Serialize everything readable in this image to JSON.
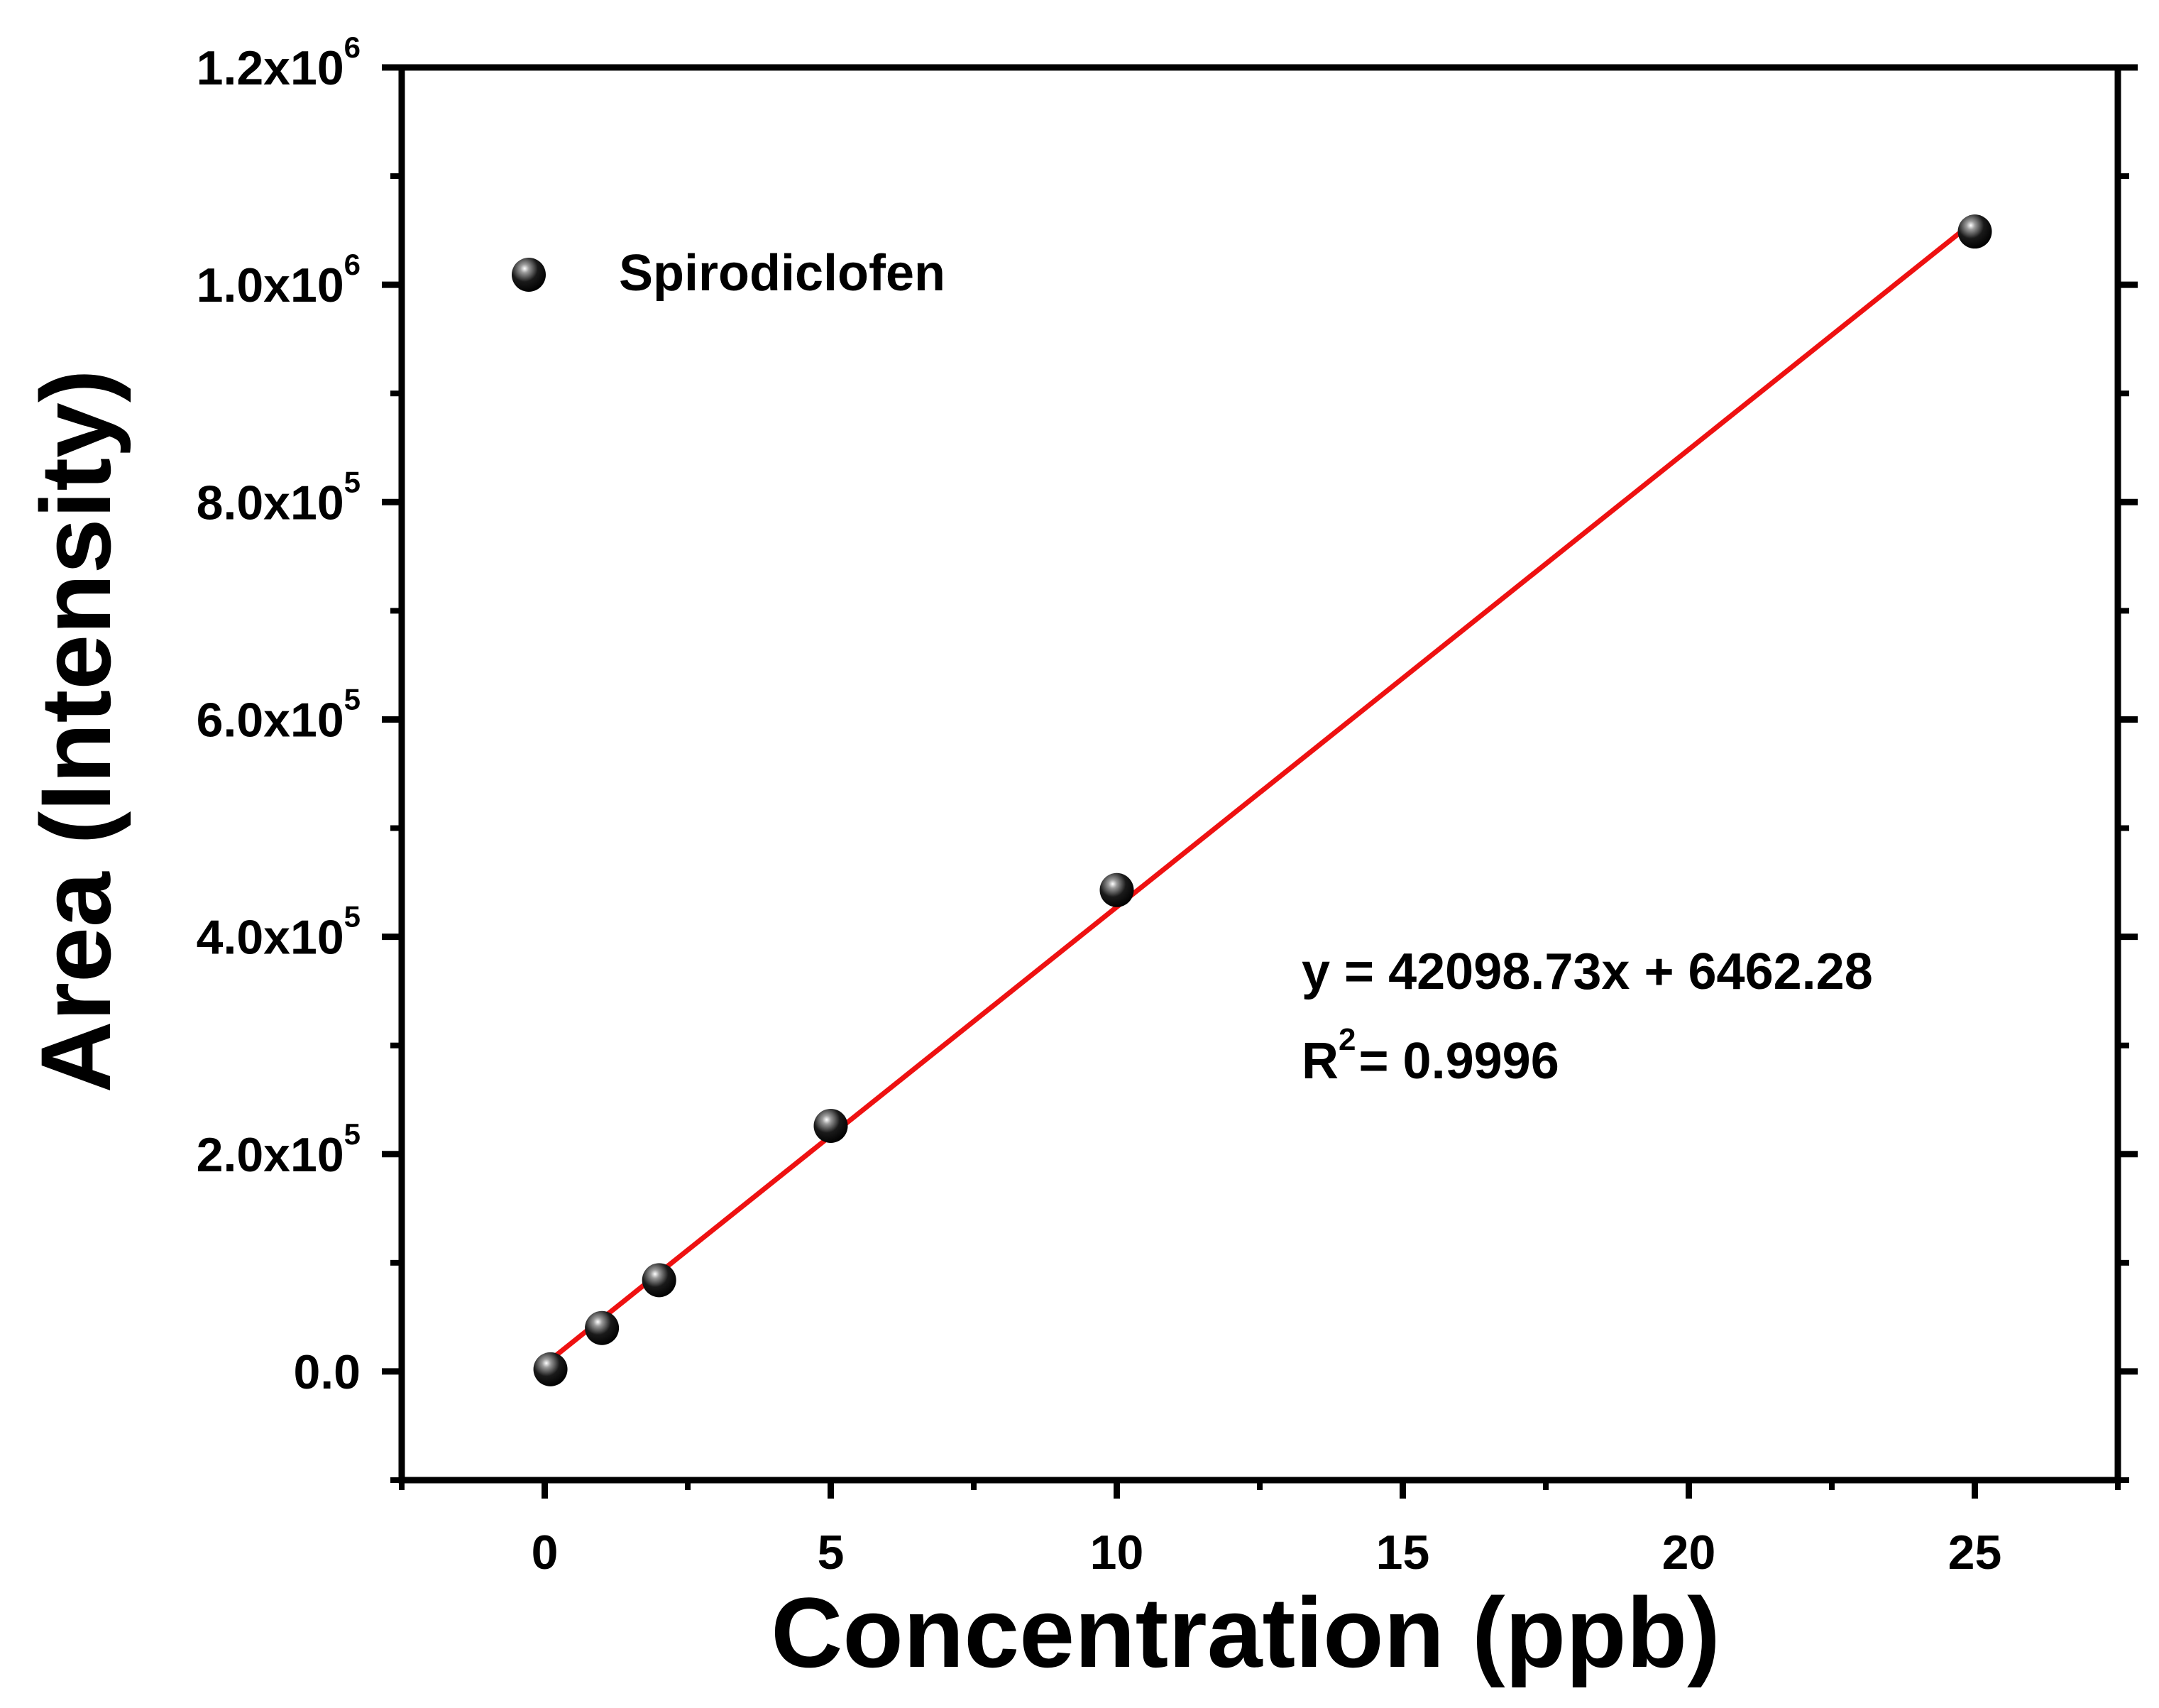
{
  "chart_data": {
    "type": "scatter",
    "title": "",
    "xlabel": "Concentration (ppb)",
    "ylabel": "Area (Intensity)",
    "xlim": [
      -2.5,
      27.5
    ],
    "ylim": [
      -100000,
      1200000
    ],
    "x_ticks": [
      0,
      5,
      10,
      15,
      20,
      25
    ],
    "x_tick_labels": [
      "0",
      "5",
      "10",
      "15",
      "20",
      "25"
    ],
    "x_minor_ticks": [
      -2.5,
      2.5,
      7.5,
      12.5,
      17.5,
      22.5,
      27.5
    ],
    "y_ticks": [
      0,
      200000,
      400000,
      600000,
      800000,
      1000000,
      1200000
    ],
    "y_tick_labels": [
      {
        "mantissa": "0.0",
        "exp": ""
      },
      {
        "mantissa": "2.0x10",
        "exp": "5"
      },
      {
        "mantissa": "4.0x10",
        "exp": "5"
      },
      {
        "mantissa": "6.0x10",
        "exp": "5"
      },
      {
        "mantissa": "8.0x10",
        "exp": "5"
      },
      {
        "mantissa": "1.0x10",
        "exp": "6"
      },
      {
        "mantissa": "1.2x10",
        "exp": "6"
      }
    ],
    "y_minor_ticks": [
      -100000,
      100000,
      300000,
      500000,
      700000,
      900000,
      1100000
    ],
    "series": [
      {
        "name": "Spirodiclofen",
        "marker": "sphere",
        "color": "#000000",
        "x": [
          0.1,
          1,
          2,
          5,
          10,
          25
        ],
        "y": [
          2000,
          40000,
          84000,
          226000,
          443000,
          1049000
        ]
      }
    ],
    "fit": {
      "type": "linear",
      "slope": 42098.73,
      "intercept": 6462.28,
      "x_range": [
        0,
        25
      ],
      "color": "#ee1111"
    },
    "annotations": {
      "equation": "y = 42098.73x + 6462.28",
      "r2_prefix": "R",
      "r2_sup": "2",
      "r2_suffix": "= 0.9996"
    },
    "legend": {
      "entry": "Spirodiclofen",
      "location": "top-left"
    },
    "grid": false
  }
}
